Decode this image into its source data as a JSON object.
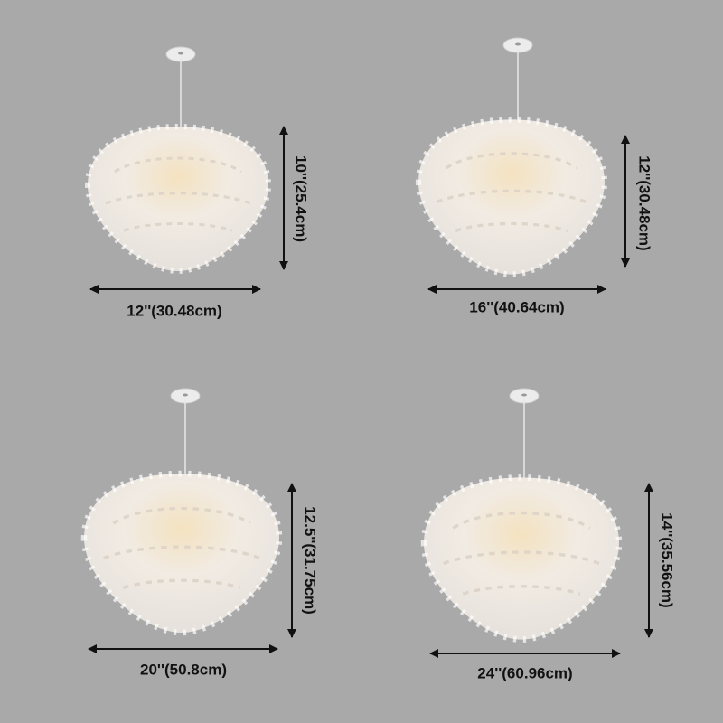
{
  "lamps": [
    {
      "width": "12''(30.48cm)",
      "height": "10''(25.4cm)"
    },
    {
      "width": "16''(40.64cm)",
      "height": "12''(30.48cm)"
    },
    {
      "width": "20''(50.8cm)",
      "height": "12.5''(31.75cm)"
    },
    {
      "width": "24''(60.96cm)",
      "height": "14''(35.56cm)"
    }
  ]
}
